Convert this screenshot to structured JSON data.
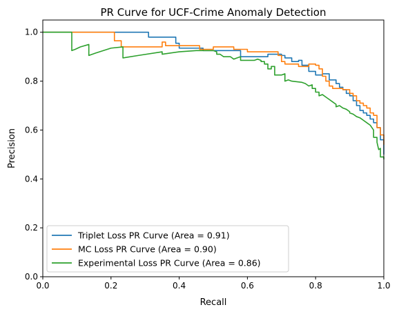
{
  "chart_data": {
    "type": "line",
    "title": "PR Curve for UCF-Crime Anomaly Detection",
    "xlabel": "Recall",
    "ylabel": "Precision",
    "xlim": [
      0.0,
      1.0
    ],
    "ylim": [
      0.0,
      1.05
    ],
    "xticks": [
      "0.0",
      "0.2",
      "0.4",
      "0.6",
      "0.8",
      "1.0"
    ],
    "yticks": [
      "0.0",
      "0.2",
      "0.4",
      "0.6",
      "0.8",
      "1.0"
    ],
    "grid": false,
    "legend_position": "lower-left",
    "series": [
      {
        "name": "Triplet Loss PR Curve (Area = 0.91)",
        "color": "#1f77b4",
        "points": [
          [
            0.0,
            1.0
          ],
          [
            0.31,
            1.0
          ],
          [
            0.31,
            0.98
          ],
          [
            0.39,
            0.98
          ],
          [
            0.39,
            0.955
          ],
          [
            0.4,
            0.955
          ],
          [
            0.4,
            0.935
          ],
          [
            0.47,
            0.935
          ],
          [
            0.47,
            0.925
          ],
          [
            0.58,
            0.925
          ],
          [
            0.58,
            0.9
          ],
          [
            0.66,
            0.9
          ],
          [
            0.66,
            0.91
          ],
          [
            0.7,
            0.91
          ],
          [
            0.7,
            0.905
          ],
          [
            0.71,
            0.905
          ],
          [
            0.71,
            0.895
          ],
          [
            0.73,
            0.895
          ],
          [
            0.73,
            0.88
          ],
          [
            0.75,
            0.88
          ],
          [
            0.75,
            0.885
          ],
          [
            0.76,
            0.885
          ],
          [
            0.76,
            0.865
          ],
          [
            0.78,
            0.865
          ],
          [
            0.78,
            0.84
          ],
          [
            0.8,
            0.84
          ],
          [
            0.8,
            0.825
          ],
          [
            0.82,
            0.825
          ],
          [
            0.82,
            0.83
          ],
          [
            0.84,
            0.83
          ],
          [
            0.84,
            0.805
          ],
          [
            0.86,
            0.805
          ],
          [
            0.86,
            0.79
          ],
          [
            0.87,
            0.79
          ],
          [
            0.87,
            0.775
          ],
          [
            0.88,
            0.775
          ],
          [
            0.88,
            0.765
          ],
          [
            0.89,
            0.765
          ],
          [
            0.89,
            0.75
          ],
          [
            0.9,
            0.75
          ],
          [
            0.9,
            0.74
          ],
          [
            0.91,
            0.74
          ],
          [
            0.91,
            0.72
          ],
          [
            0.92,
            0.72
          ],
          [
            0.92,
            0.7
          ],
          [
            0.93,
            0.7
          ],
          [
            0.93,
            0.68
          ],
          [
            0.94,
            0.68
          ],
          [
            0.94,
            0.67
          ],
          [
            0.95,
            0.67
          ],
          [
            0.95,
            0.66
          ],
          [
            0.96,
            0.66
          ],
          [
            0.96,
            0.645
          ],
          [
            0.97,
            0.645
          ],
          [
            0.97,
            0.63
          ],
          [
            0.98,
            0.63
          ],
          [
            0.98,
            0.61
          ],
          [
            0.99,
            0.61
          ],
          [
            0.99,
            0.56
          ],
          [
            1.0,
            0.56
          ],
          [
            1.0,
            0.5
          ]
        ]
      },
      {
        "name": "MC Loss PR Curve (Area = 0.90)",
        "color": "#ff7f0e",
        "points": [
          [
            0.0,
            1.0
          ],
          [
            0.21,
            1.0
          ],
          [
            0.21,
            0.965
          ],
          [
            0.23,
            0.965
          ],
          [
            0.23,
            0.94
          ],
          [
            0.35,
            0.94
          ],
          [
            0.35,
            0.96
          ],
          [
            0.36,
            0.96
          ],
          [
            0.36,
            0.945
          ],
          [
            0.46,
            0.945
          ],
          [
            0.46,
            0.93
          ],
          [
            0.5,
            0.93
          ],
          [
            0.5,
            0.94
          ],
          [
            0.56,
            0.94
          ],
          [
            0.56,
            0.93
          ],
          [
            0.6,
            0.93
          ],
          [
            0.6,
            0.92
          ],
          [
            0.69,
            0.92
          ],
          [
            0.69,
            0.905
          ],
          [
            0.7,
            0.905
          ],
          [
            0.7,
            0.895
          ],
          [
            0.7,
            0.88
          ],
          [
            0.71,
            0.88
          ],
          [
            0.71,
            0.87
          ],
          [
            0.75,
            0.87
          ],
          [
            0.75,
            0.86
          ],
          [
            0.78,
            0.86
          ],
          [
            0.78,
            0.87
          ],
          [
            0.8,
            0.87
          ],
          [
            0.8,
            0.865
          ],
          [
            0.81,
            0.865
          ],
          [
            0.81,
            0.85
          ],
          [
            0.82,
            0.85
          ],
          [
            0.82,
            0.82
          ],
          [
            0.83,
            0.82
          ],
          [
            0.83,
            0.8
          ],
          [
            0.84,
            0.8
          ],
          [
            0.84,
            0.78
          ],
          [
            0.85,
            0.78
          ],
          [
            0.85,
            0.77
          ],
          [
            0.88,
            0.77
          ],
          [
            0.88,
            0.765
          ],
          [
            0.9,
            0.765
          ],
          [
            0.9,
            0.75
          ],
          [
            0.91,
            0.75
          ],
          [
            0.91,
            0.74
          ],
          [
            0.92,
            0.74
          ],
          [
            0.92,
            0.72
          ],
          [
            0.93,
            0.72
          ],
          [
            0.93,
            0.71
          ],
          [
            0.94,
            0.71
          ],
          [
            0.94,
            0.7
          ],
          [
            0.95,
            0.7
          ],
          [
            0.95,
            0.69
          ],
          [
            0.96,
            0.69
          ],
          [
            0.96,
            0.67
          ],
          [
            0.97,
            0.67
          ],
          [
            0.97,
            0.66
          ],
          [
            0.98,
            0.66
          ],
          [
            0.98,
            0.61
          ],
          [
            0.99,
            0.61
          ],
          [
            0.99,
            0.58
          ],
          [
            1.0,
            0.58
          ],
          [
            1.0,
            0.54
          ]
        ]
      },
      {
        "name": "Experimental Loss PR Curve (Area = 0.86)",
        "color": "#2ca02c",
        "points": [
          [
            0.0,
            1.0
          ],
          [
            0.085,
            1.0
          ],
          [
            0.085,
            0.925
          ],
          [
            0.095,
            0.93
          ],
          [
            0.11,
            0.94
          ],
          [
            0.135,
            0.95
          ],
          [
            0.135,
            0.905
          ],
          [
            0.155,
            0.915
          ],
          [
            0.2,
            0.935
          ],
          [
            0.235,
            0.94
          ],
          [
            0.235,
            0.895
          ],
          [
            0.28,
            0.905
          ],
          [
            0.35,
            0.92
          ],
          [
            0.35,
            0.91
          ],
          [
            0.4,
            0.92
          ],
          [
            0.45,
            0.925
          ],
          [
            0.5,
            0.925
          ],
          [
            0.51,
            0.92
          ],
          [
            0.51,
            0.91
          ],
          [
            0.52,
            0.91
          ],
          [
            0.53,
            0.9
          ],
          [
            0.55,
            0.9
          ],
          [
            0.56,
            0.89
          ],
          [
            0.57,
            0.895
          ],
          [
            0.58,
            0.9
          ],
          [
            0.58,
            0.885
          ],
          [
            0.62,
            0.885
          ],
          [
            0.63,
            0.89
          ],
          [
            0.64,
            0.885
          ],
          [
            0.64,
            0.88
          ],
          [
            0.65,
            0.88
          ],
          [
            0.65,
            0.87
          ],
          [
            0.66,
            0.87
          ],
          [
            0.66,
            0.85
          ],
          [
            0.67,
            0.85
          ],
          [
            0.67,
            0.86
          ],
          [
            0.68,
            0.86
          ],
          [
            0.68,
            0.825
          ],
          [
            0.7,
            0.825
          ],
          [
            0.71,
            0.83
          ],
          [
            0.71,
            0.8
          ],
          [
            0.72,
            0.805
          ],
          [
            0.73,
            0.8
          ],
          [
            0.76,
            0.795
          ],
          [
            0.77,
            0.79
          ],
          [
            0.78,
            0.78
          ],
          [
            0.79,
            0.785
          ],
          [
            0.79,
            0.77
          ],
          [
            0.8,
            0.77
          ],
          [
            0.8,
            0.755
          ],
          [
            0.81,
            0.755
          ],
          [
            0.81,
            0.74
          ],
          [
            0.82,
            0.745
          ],
          [
            0.83,
            0.735
          ],
          [
            0.84,
            0.725
          ],
          [
            0.85,
            0.715
          ],
          [
            0.86,
            0.705
          ],
          [
            0.86,
            0.695
          ],
          [
            0.87,
            0.7
          ],
          [
            0.88,
            0.69
          ],
          [
            0.89,
            0.685
          ],
          [
            0.9,
            0.675
          ],
          [
            0.9,
            0.67
          ],
          [
            0.91,
            0.665
          ],
          [
            0.92,
            0.655
          ],
          [
            0.93,
            0.65
          ],
          [
            0.94,
            0.64
          ],
          [
            0.95,
            0.63
          ],
          [
            0.96,
            0.62
          ],
          [
            0.97,
            0.6
          ],
          [
            0.97,
            0.57
          ],
          [
            0.98,
            0.57
          ],
          [
            0.98,
            0.55
          ],
          [
            0.985,
            0.52
          ],
          [
            0.99,
            0.525
          ],
          [
            0.99,
            0.49
          ],
          [
            1.0,
            0.49
          ],
          [
            1.0,
            0.48
          ]
        ]
      }
    ]
  }
}
